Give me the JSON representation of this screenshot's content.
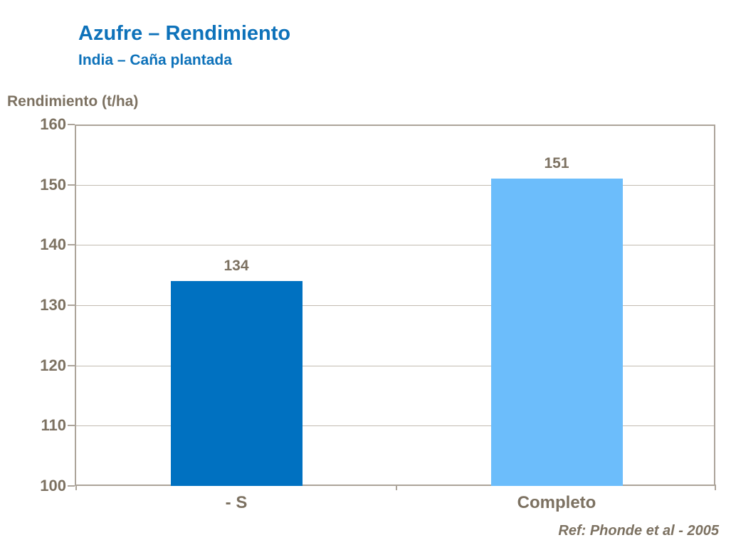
{
  "header": {
    "title": "Azufre – Rendimiento",
    "subtitle": "India – Caña plantada"
  },
  "footer": {
    "reference": "Ref: Phonde et al - 2005"
  },
  "colors": {
    "title_blue": "#0E72BA",
    "text_brown_gray": "#7C7161",
    "axis_frame": "#ACA49A",
    "gridline": "#C2BBB1",
    "bar_minus_s": "#0071C1",
    "bar_completo": "#6CBDFB",
    "background": "#FFFFFF"
  },
  "chart_data": {
    "type": "bar",
    "title": "Azufre – Rendimiento",
    "subtitle": "India – Caña plantada",
    "ylabel": "Rendimiento (t/ha)",
    "xlabel": "",
    "categories": [
      "- S",
      "Completo"
    ],
    "values": [
      134,
      151
    ],
    "data_labels": [
      "134",
      "151"
    ],
    "bar_colors": [
      "#0071C1",
      "#6CBDFB"
    ],
    "ylim": [
      100,
      160
    ],
    "yticks": [
      100,
      110,
      120,
      130,
      140,
      150,
      160
    ],
    "ytick_step": 10,
    "grid": true,
    "legend": false,
    "annotation": "Ref: Phonde et al - 2005"
  }
}
